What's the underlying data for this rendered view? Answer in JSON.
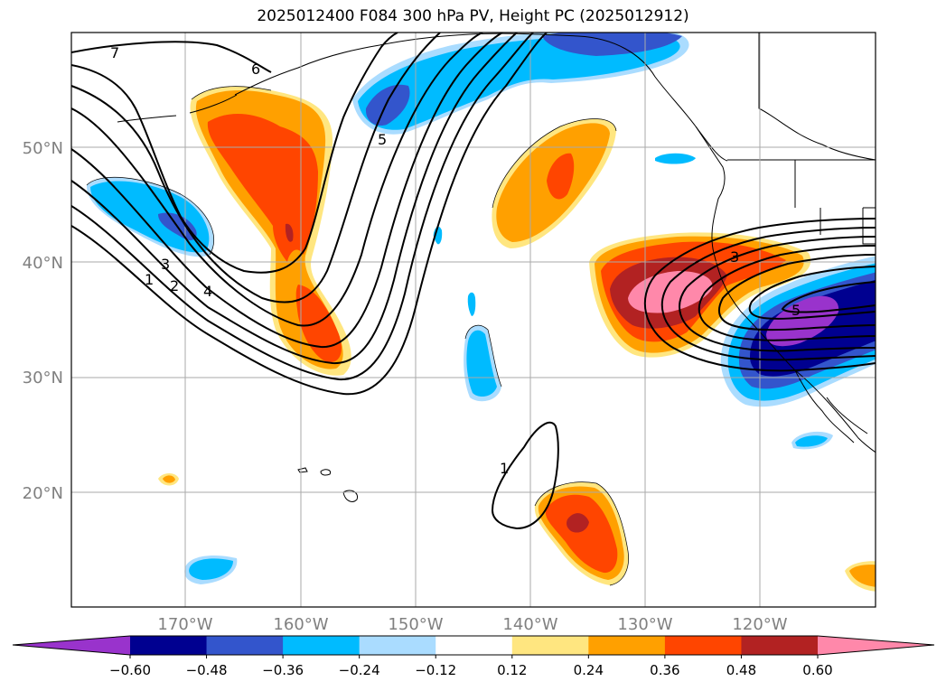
{
  "title": "2025012400 F084 300 hPa PV, Height PC (2025012912)",
  "axes": {
    "lat_labels": [
      "50°N",
      "40°N",
      "30°N",
      "20°N"
    ],
    "lon_labels": [
      "170°W",
      "160°W",
      "150°W",
      "140°W",
      "130°W",
      "120°W"
    ],
    "grid": true,
    "tick_label_color": "#808080"
  },
  "colorbar": {
    "tick_labels": [
      "−0.60",
      "−0.48",
      "−0.36",
      "−0.24",
      "−0.12",
      "0.12",
      "0.24",
      "0.36",
      "0.48",
      "0.60"
    ],
    "colors": [
      "#9933cc",
      "#000090",
      "#3355cc",
      "#00bbff",
      "#aadcff",
      "#ffffff",
      "#ffe680",
      "#ffa000",
      "#ff4500",
      "#b22222",
      "#ff88aa"
    ],
    "extend": "both"
  },
  "contour_labels": [
    "7",
    "6",
    "5",
    "4",
    "3",
    "2",
    "1",
    "3",
    "5",
    "1"
  ]
}
